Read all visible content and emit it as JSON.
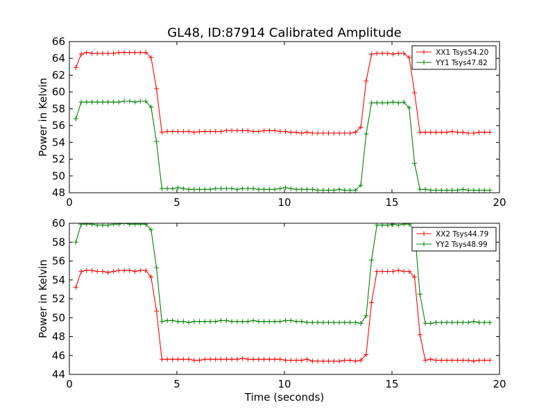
{
  "chart_data": [
    {
      "type": "line",
      "title": "GL48, ID:87914 Calibrated Amplitude",
      "xlabel": "",
      "ylabel": "Power in Kelvin",
      "xlim": [
        0,
        20
      ],
      "ylim": [
        48,
        66
      ],
      "xticks": [
        "0",
        "5",
        "10",
        "15",
        "20"
      ],
      "yticks": [
        "48",
        "50",
        "52",
        "54",
        "56",
        "58",
        "60",
        "62",
        "64",
        "66"
      ],
      "legend_position": "top-right",
      "grid": false,
      "x": [
        0.3,
        0.55,
        0.8,
        1.05,
        1.3,
        1.55,
        1.8,
        2.05,
        2.3,
        2.55,
        2.8,
        3.05,
        3.3,
        3.55,
        3.8,
        4.05,
        4.3,
        4.55,
        4.8,
        5.05,
        5.3,
        5.55,
        5.8,
        6.05,
        6.3,
        6.55,
        6.8,
        7.05,
        7.3,
        7.55,
        7.8,
        8.05,
        8.3,
        8.55,
        8.8,
        9.05,
        9.3,
        9.55,
        9.8,
        10.05,
        10.3,
        10.55,
        10.8,
        11.05,
        11.3,
        11.55,
        11.8,
        12.05,
        12.3,
        12.55,
        12.8,
        13.05,
        13.3,
        13.55,
        13.8,
        14.05,
        14.3,
        14.55,
        14.8,
        15.05,
        15.3,
        15.55,
        15.8,
        16.05,
        16.3,
        16.55,
        16.8,
        17.05,
        17.3,
        17.55,
        17.8,
        18.05,
        18.3,
        18.55,
        18.8,
        19.05,
        19.3,
        19.55
      ],
      "series": [
        {
          "name": "XX1 Tsys54.20",
          "color": "#ff0000",
          "values": [
            62.9,
            64.5,
            64.7,
            64.6,
            64.6,
            64.6,
            64.6,
            64.6,
            64.7,
            64.7,
            64.7,
            64.7,
            64.7,
            64.7,
            64.1,
            60.4,
            55.2,
            55.3,
            55.3,
            55.3,
            55.3,
            55.3,
            55.2,
            55.3,
            55.3,
            55.3,
            55.3,
            55.3,
            55.4,
            55.4,
            55.4,
            55.4,
            55.4,
            55.3,
            55.3,
            55.4,
            55.4,
            55.4,
            55.3,
            55.3,
            55.2,
            55.2,
            55.1,
            55.2,
            55.1,
            55.1,
            55.1,
            55.1,
            55.1,
            55.1,
            55.1,
            55.1,
            55.2,
            55.8,
            61.3,
            64.5,
            64.6,
            64.6,
            64.6,
            64.5,
            64.6,
            64.6,
            64.1,
            59.9,
            55.2,
            55.2,
            55.2,
            55.2,
            55.2,
            55.2,
            55.3,
            55.2,
            55.2,
            55.1,
            55.1,
            55.2,
            55.2,
            55.2
          ]
        },
        {
          "name": "YY1 Tsys47.82",
          "color": "#008000",
          "values": [
            56.8,
            58.8,
            58.8,
            58.8,
            58.8,
            58.8,
            58.8,
            58.8,
            58.8,
            58.9,
            58.9,
            58.8,
            58.9,
            58.9,
            58.2,
            54.1,
            48.5,
            48.5,
            48.5,
            48.6,
            48.5,
            48.4,
            48.4,
            48.4,
            48.4,
            48.4,
            48.5,
            48.5,
            48.5,
            48.5,
            48.4,
            48.5,
            48.5,
            48.5,
            48.4,
            48.4,
            48.4,
            48.4,
            48.5,
            48.6,
            48.5,
            48.4,
            48.4,
            48.4,
            48.4,
            48.3,
            48.3,
            48.3,
            48.3,
            48.4,
            48.3,
            48.3,
            48.3,
            48.9,
            55.0,
            58.7,
            58.7,
            58.7,
            58.7,
            58.8,
            58.7,
            58.8,
            58.1,
            51.5,
            48.4,
            48.4,
            48.3,
            48.3,
            48.3,
            48.3,
            48.3,
            48.3,
            48.4,
            48.3,
            48.3,
            48.3,
            48.3,
            48.3
          ]
        }
      ]
    },
    {
      "type": "line",
      "title": "",
      "xlabel": "Time (seconds)",
      "ylabel": "Power in Kelvin",
      "xlim": [
        0,
        20
      ],
      "ylim": [
        44,
        60
      ],
      "xticks": [
        "0",
        "5",
        "10",
        "15",
        "20"
      ],
      "yticks": [
        "44",
        "46",
        "48",
        "50",
        "52",
        "54",
        "56",
        "58",
        "60"
      ],
      "legend_position": "top-right",
      "grid": false,
      "x": [
        0.3,
        0.55,
        0.8,
        1.05,
        1.3,
        1.55,
        1.8,
        2.05,
        2.3,
        2.55,
        2.8,
        3.05,
        3.3,
        3.55,
        3.8,
        4.05,
        4.3,
        4.55,
        4.8,
        5.05,
        5.3,
        5.55,
        5.8,
        6.05,
        6.3,
        6.55,
        6.8,
        7.05,
        7.3,
        7.55,
        7.8,
        8.05,
        8.3,
        8.55,
        8.8,
        9.05,
        9.3,
        9.55,
        9.8,
        10.05,
        10.3,
        10.55,
        10.8,
        11.05,
        11.3,
        11.55,
        11.8,
        12.05,
        12.3,
        12.55,
        12.8,
        13.05,
        13.3,
        13.55,
        13.8,
        14.05,
        14.3,
        14.55,
        14.8,
        15.05,
        15.3,
        15.55,
        15.8,
        16.05,
        16.3,
        16.55,
        16.8,
        17.05,
        17.3,
        17.55,
        17.8,
        18.05,
        18.3,
        18.55,
        18.8,
        19.05,
        19.3,
        19.55
      ],
      "series": [
        {
          "name": "XX2 Tsys44.79",
          "color": "#ff0000",
          "values": [
            53.2,
            54.9,
            55.0,
            55.0,
            54.9,
            54.9,
            54.8,
            54.9,
            55.0,
            55.0,
            55.0,
            54.9,
            55.0,
            55.0,
            54.3,
            50.7,
            45.6,
            45.6,
            45.6,
            45.6,
            45.6,
            45.6,
            45.5,
            45.5,
            45.6,
            45.6,
            45.6,
            45.6,
            45.6,
            45.6,
            45.6,
            45.7,
            45.6,
            45.6,
            45.6,
            45.6,
            45.6,
            45.6,
            45.6,
            45.5,
            45.5,
            45.5,
            45.5,
            45.6,
            45.4,
            45.4,
            45.4,
            45.4,
            45.4,
            45.4,
            45.5,
            45.5,
            45.4,
            45.5,
            46.1,
            51.6,
            54.9,
            54.9,
            54.9,
            54.9,
            55.0,
            54.9,
            54.9,
            54.3,
            48.2,
            45.5,
            45.6,
            45.5,
            45.5,
            45.5,
            45.5,
            45.5,
            45.5,
            45.5,
            45.4,
            45.5,
            45.5,
            45.5
          ]
        },
        {
          "name": "YY2 Tsys48.99",
          "color": "#008000",
          "values": [
            58.0,
            59.9,
            59.9,
            59.9,
            59.8,
            59.8,
            59.8,
            59.9,
            59.9,
            60.0,
            59.9,
            59.9,
            59.9,
            59.9,
            59.3,
            55.3,
            49.6,
            49.7,
            49.7,
            49.6,
            49.6,
            49.5,
            49.6,
            49.6,
            49.6,
            49.6,
            49.6,
            49.7,
            49.7,
            49.6,
            49.6,
            49.6,
            49.6,
            49.7,
            49.6,
            49.6,
            49.6,
            49.6,
            49.6,
            49.7,
            49.7,
            49.6,
            49.6,
            49.5,
            49.5,
            49.5,
            49.5,
            49.5,
            49.5,
            49.5,
            49.5,
            49.5,
            49.5,
            49.4,
            50.2,
            56.1,
            59.8,
            59.8,
            59.8,
            59.9,
            59.8,
            59.9,
            59.9,
            59.3,
            52.5,
            49.4,
            49.4,
            49.5,
            49.5,
            49.5,
            49.5,
            49.5,
            49.5,
            49.5,
            49.6,
            49.5,
            49.5,
            49.5
          ]
        }
      ]
    }
  ]
}
